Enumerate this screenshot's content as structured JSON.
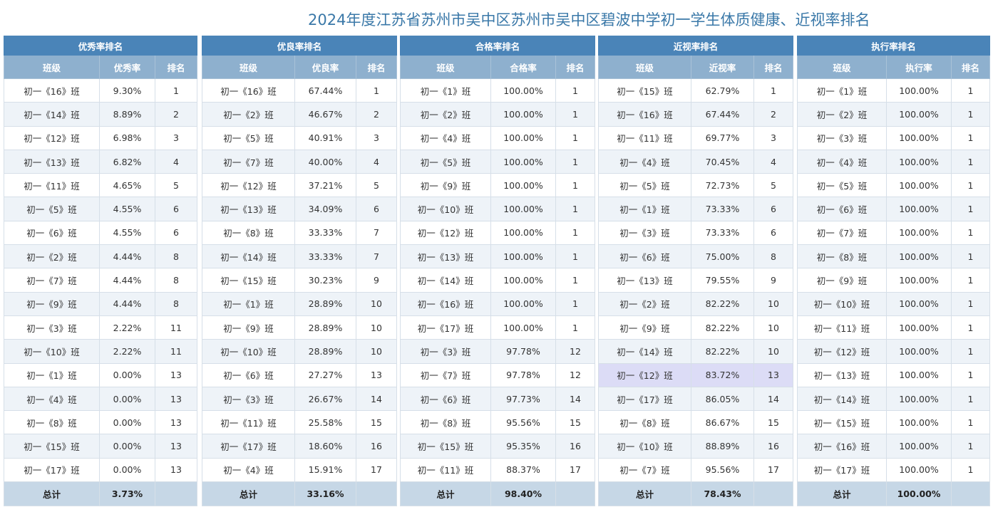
{
  "page_title": "2024年度江苏省苏州市吴中区苏州市吴中区碧波中学初一学生体质健康、近视率排名",
  "tables": [
    {
      "title": "优秀率排名",
      "headers": [
        "班级",
        "优秀率",
        "排名"
      ],
      "rows": [
        [
          "初一《16》班",
          "9.30%",
          "1"
        ],
        [
          "初一《14》班",
          "8.89%",
          "2"
        ],
        [
          "初一《12》班",
          "6.98%",
          "3"
        ],
        [
          "初一《13》班",
          "6.82%",
          "4"
        ],
        [
          "初一《11》班",
          "4.65%",
          "5"
        ],
        [
          "初一《5》班",
          "4.55%",
          "6"
        ],
        [
          "初一《6》班",
          "4.55%",
          "6"
        ],
        [
          "初一《2》班",
          "4.44%",
          "8"
        ],
        [
          "初一《7》班",
          "4.44%",
          "8"
        ],
        [
          "初一《9》班",
          "4.44%",
          "8"
        ],
        [
          "初一《3》班",
          "2.22%",
          "11"
        ],
        [
          "初一《10》班",
          "2.22%",
          "11"
        ],
        [
          "初一《1》班",
          "0.00%",
          "13"
        ],
        [
          "初一《4》班",
          "0.00%",
          "13"
        ],
        [
          "初一《8》班",
          "0.00%",
          "13"
        ],
        [
          "初一《15》班",
          "0.00%",
          "13"
        ],
        [
          "初一《17》班",
          "0.00%",
          "13"
        ]
      ],
      "total": [
        "总计",
        "3.73%",
        ""
      ]
    },
    {
      "title": "优良率排名",
      "headers": [
        "班级",
        "优良率",
        "排名"
      ],
      "rows": [
        [
          "初一《16》班",
          "67.44%",
          "1"
        ],
        [
          "初一《2》班",
          "46.67%",
          "2"
        ],
        [
          "初一《5》班",
          "40.91%",
          "3"
        ],
        [
          "初一《7》班",
          "40.00%",
          "4"
        ],
        [
          "初一《12》班",
          "37.21%",
          "5"
        ],
        [
          "初一《13》班",
          "34.09%",
          "6"
        ],
        [
          "初一《8》班",
          "33.33%",
          "7"
        ],
        [
          "初一《14》班",
          "33.33%",
          "7"
        ],
        [
          "初一《15》班",
          "30.23%",
          "9"
        ],
        [
          "初一《1》班",
          "28.89%",
          "10"
        ],
        [
          "初一《9》班",
          "28.89%",
          "10"
        ],
        [
          "初一《10》班",
          "28.89%",
          "10"
        ],
        [
          "初一《6》班",
          "27.27%",
          "13"
        ],
        [
          "初一《3》班",
          "26.67%",
          "14"
        ],
        [
          "初一《11》班",
          "25.58%",
          "15"
        ],
        [
          "初一《17》班",
          "18.60%",
          "16"
        ],
        [
          "初一《4》班",
          "15.91%",
          "17"
        ]
      ],
      "total": [
        "总计",
        "33.16%",
        ""
      ]
    },
    {
      "title": "合格率排名",
      "headers": [
        "班级",
        "合格率",
        "排名"
      ],
      "rows": [
        [
          "初一《1》班",
          "100.00%",
          "1"
        ],
        [
          "初一《2》班",
          "100.00%",
          "1"
        ],
        [
          "初一《4》班",
          "100.00%",
          "1"
        ],
        [
          "初一《5》班",
          "100.00%",
          "1"
        ],
        [
          "初一《9》班",
          "100.00%",
          "1"
        ],
        [
          "初一《10》班",
          "100.00%",
          "1"
        ],
        [
          "初一《12》班",
          "100.00%",
          "1"
        ],
        [
          "初一《13》班",
          "100.00%",
          "1"
        ],
        [
          "初一《14》班",
          "100.00%",
          "1"
        ],
        [
          "初一《16》班",
          "100.00%",
          "1"
        ],
        [
          "初一《17》班",
          "100.00%",
          "1"
        ],
        [
          "初一《3》班",
          "97.78%",
          "12"
        ],
        [
          "初一《7》班",
          "97.78%",
          "12"
        ],
        [
          "初一《6》班",
          "97.73%",
          "14"
        ],
        [
          "初一《8》班",
          "95.56%",
          "15"
        ],
        [
          "初一《15》班",
          "95.35%",
          "16"
        ],
        [
          "初一《11》班",
          "88.37%",
          "17"
        ]
      ],
      "total": [
        "总计",
        "98.40%",
        ""
      ]
    },
    {
      "title": "近视率排名",
      "headers": [
        "班级",
        "近视率",
        "排名"
      ],
      "rows": [
        [
          "初一《15》班",
          "62.79%",
          "1"
        ],
        [
          "初一《16》班",
          "67.44%",
          "2"
        ],
        [
          "初一《11》班",
          "69.77%",
          "3"
        ],
        [
          "初一《4》班",
          "70.45%",
          "4"
        ],
        [
          "初一《5》班",
          "72.73%",
          "5"
        ],
        [
          "初一《1》班",
          "73.33%",
          "6"
        ],
        [
          "初一《3》班",
          "73.33%",
          "6"
        ],
        [
          "初一《6》班",
          "75.00%",
          "8"
        ],
        [
          "初一《13》班",
          "79.55%",
          "9"
        ],
        [
          "初一《2》班",
          "82.22%",
          "10"
        ],
        [
          "初一《9》班",
          "82.22%",
          "10"
        ],
        [
          "初一《14》班",
          "82.22%",
          "10"
        ],
        [
          "初一《12》班",
          "83.72%",
          "13"
        ],
        [
          "初一《17》班",
          "86.05%",
          "14"
        ],
        [
          "初一《8》班",
          "86.67%",
          "15"
        ],
        [
          "初一《10》班",
          "88.89%",
          "16"
        ],
        [
          "初一《7》班",
          "95.56%",
          "17"
        ]
      ],
      "total": [
        "总计",
        "78.43%",
        ""
      ],
      "highlight_row": 12
    },
    {
      "title": "执行率排名",
      "headers": [
        "班级",
        "执行率",
        "排名"
      ],
      "rows": [
        [
          "初一《1》班",
          "100.00%",
          "1"
        ],
        [
          "初一《2》班",
          "100.00%",
          "1"
        ],
        [
          "初一《3》班",
          "100.00%",
          "1"
        ],
        [
          "初一《4》班",
          "100.00%",
          "1"
        ],
        [
          "初一《5》班",
          "100.00%",
          "1"
        ],
        [
          "初一《6》班",
          "100.00%",
          "1"
        ],
        [
          "初一《7》班",
          "100.00%",
          "1"
        ],
        [
          "初一《8》班",
          "100.00%",
          "1"
        ],
        [
          "初一《9》班",
          "100.00%",
          "1"
        ],
        [
          "初一《10》班",
          "100.00%",
          "1"
        ],
        [
          "初一《11》班",
          "100.00%",
          "1"
        ],
        [
          "初一《12》班",
          "100.00%",
          "1"
        ],
        [
          "初一《13》班",
          "100.00%",
          "1"
        ],
        [
          "初一《14》班",
          "100.00%",
          "1"
        ],
        [
          "初一《15》班",
          "100.00%",
          "1"
        ],
        [
          "初一《16》班",
          "100.00%",
          "1"
        ],
        [
          "初一《17》班",
          "100.00%",
          "1"
        ]
      ],
      "total": [
        "总计",
        "100.00%",
        ""
      ]
    }
  ]
}
